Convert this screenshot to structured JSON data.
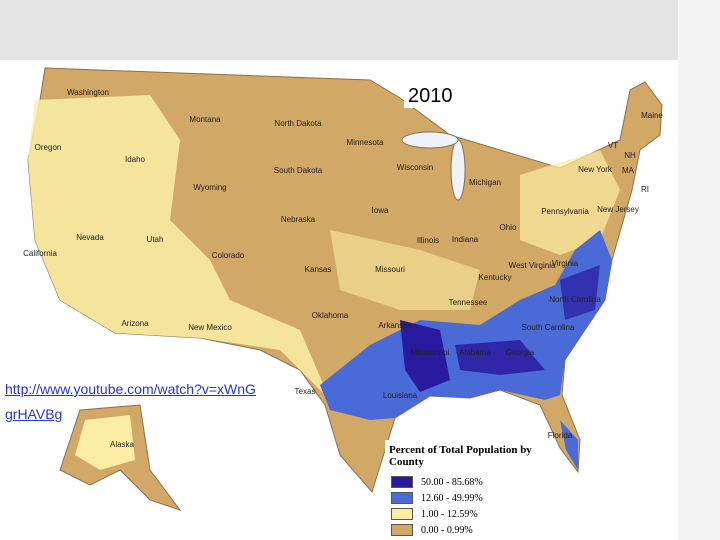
{
  "map": {
    "year": "2010",
    "link": "http://www.youtube.com/watch?v=xWnGgrHAVBg",
    "legend": {
      "title": "Percent of Total Population by County",
      "entries": [
        "50.00 - 85.68%",
        "12.60 - 49.99%",
        "1.00 - 12.59%",
        "0.00 - 0.99%"
      ]
    },
    "states": [
      "Washington",
      "Montana",
      "North Dakota",
      "Minnesota",
      "Oregon",
      "Idaho",
      "South Dakota",
      "Wisconsin",
      "Michigan",
      "Wyoming",
      "New York",
      "Nebraska",
      "Iowa",
      "Pennsylvania",
      "Nevada",
      "Utah",
      "Illinois",
      "Indiana",
      "Ohio",
      "California",
      "Colorado",
      "Kansas",
      "Missouri",
      "Kentucky",
      "West Virginia",
      "Virginia",
      "North Carolina",
      "Tennessee",
      "Oklahoma",
      "Arkansas",
      "New Mexico",
      "Arizona",
      "South Carolina",
      "Mississippi",
      "Alabama",
      "Georgia",
      "Texas",
      "Louisiana",
      "Florida",
      "Alaska",
      "Maine",
      "VT",
      "NH",
      "MA",
      "RI",
      "New Jersey"
    ]
  }
}
